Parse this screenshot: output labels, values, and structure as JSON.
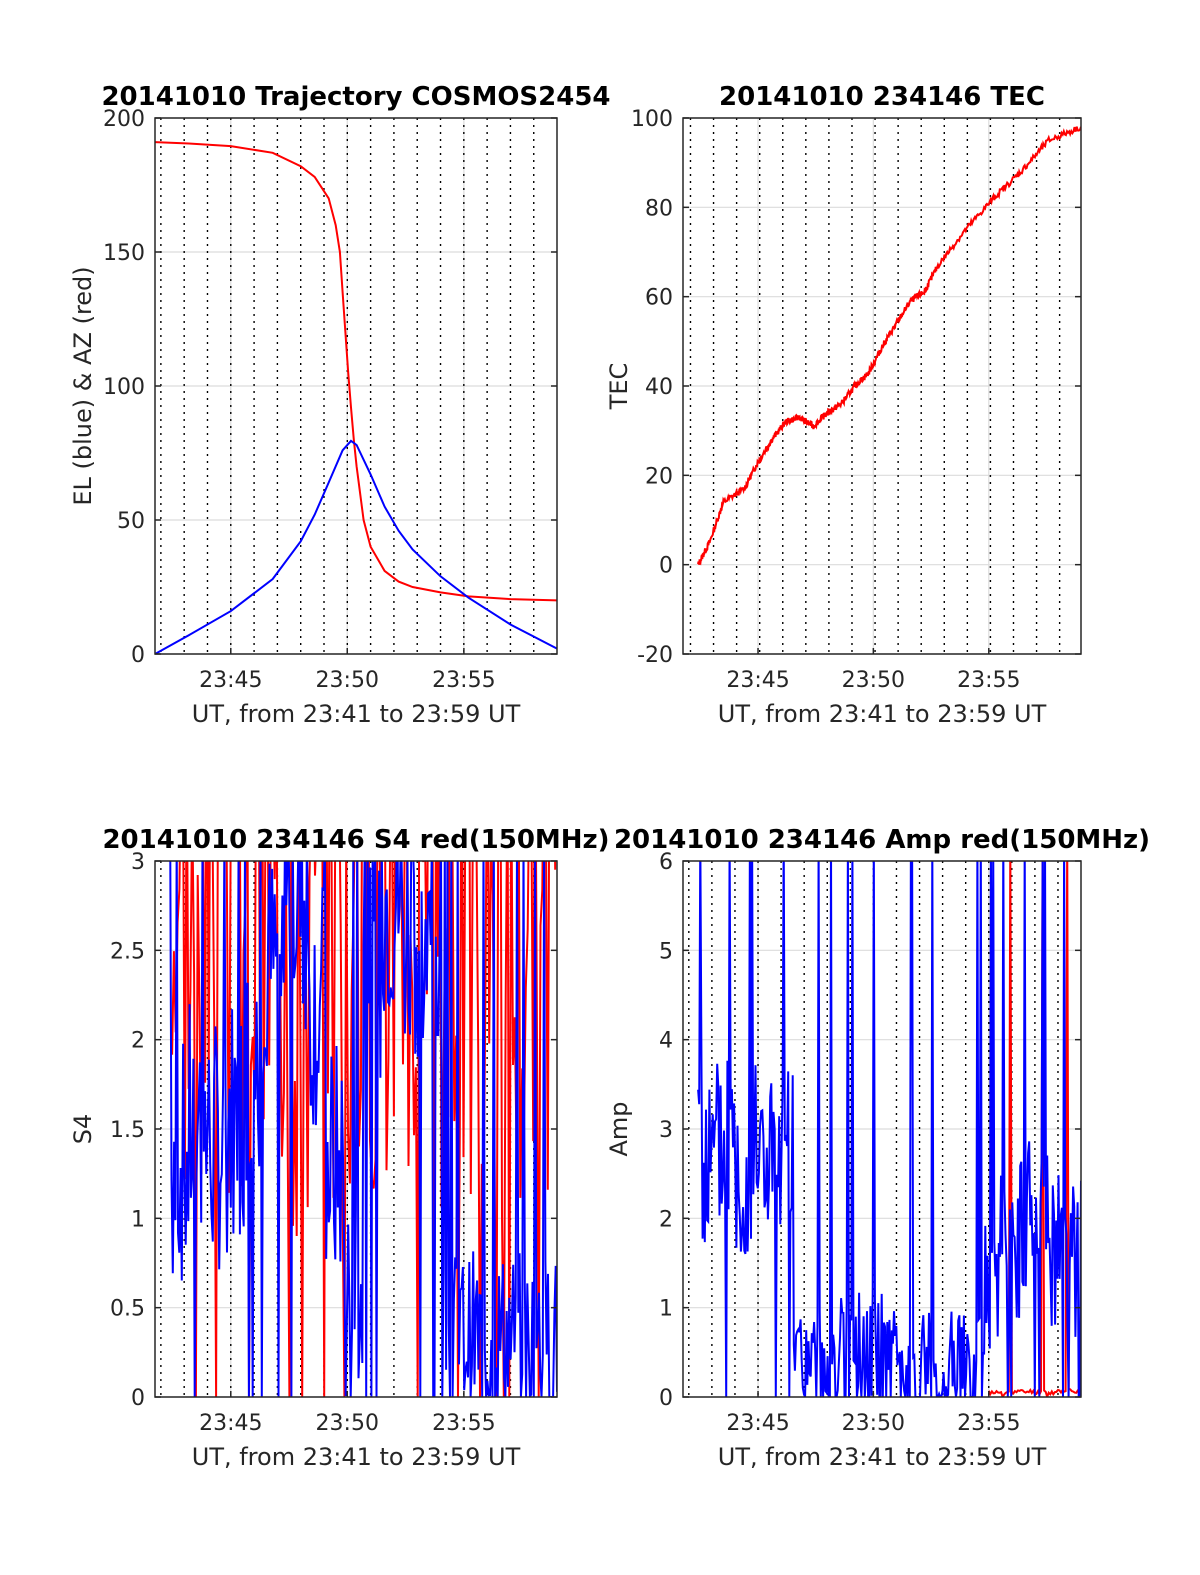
{
  "figure": {
    "background": "#ffffff",
    "grid_color": "#dcdcdc",
    "axis_color": "#262626",
    "marker_line_color": "#000000"
  },
  "chart_data": [
    {
      "type": "line",
      "title": "20141010 Trajectory COSMOS2454",
      "xlabel": "UT, from 23:41 to 23:59 UT",
      "ylabel": "EL (blue) & AZ (red)",
      "xlim": [
        23.6958,
        23.9833
      ],
      "ylim": [
        0,
        200
      ],
      "yticks": [
        0,
        50,
        100,
        150,
        200
      ],
      "xticks": [
        {
          "value": 23.75,
          "label": "23:45"
        },
        {
          "value": 23.8333,
          "label": "23:50"
        },
        {
          "value": 23.9167,
          "label": "23:55"
        }
      ],
      "grid": true,
      "minute_markers": true,
      "series": [
        {
          "color": "#ff0000",
          "kind": "smooth",
          "x": [
            23.6958,
            23.72,
            23.75,
            23.78,
            23.8,
            23.81,
            23.82,
            23.825,
            23.828,
            23.83,
            23.832,
            23.834,
            23.836,
            23.838,
            23.84,
            23.845,
            23.85,
            23.86,
            23.87,
            23.88,
            23.9,
            23.92,
            23.95,
            23.9833
          ],
          "y": [
            191,
            190.5,
            189.5,
            187,
            182,
            178,
            170,
            160,
            150,
            135,
            120,
            105,
            92,
            80,
            70,
            50,
            40,
            31,
            27,
            25,
            23,
            21.5,
            20.5,
            20
          ]
        },
        {
          "color": "#0000ff",
          "kind": "smooth",
          "x": [
            23.6958,
            23.72,
            23.75,
            23.78,
            23.8,
            23.81,
            23.82,
            23.83,
            23.836,
            23.84,
            23.85,
            23.86,
            23.87,
            23.88,
            23.9,
            23.92,
            23.95,
            23.9833
          ],
          "y": [
            0,
            7,
            16,
            28,
            42,
            52,
            64,
            76,
            79.5,
            78,
            67,
            55,
            46,
            39,
            29,
            21,
            11,
            2
          ]
        }
      ]
    },
    {
      "type": "line",
      "title": "20141010 234146 TEC",
      "xlabel": "UT, from 23:41 to 23:59 UT",
      "ylabel": "TEC",
      "xlim": [
        23.6958,
        23.9833
      ],
      "ylim": [
        -20,
        100
      ],
      "yticks": [
        -20,
        0,
        20,
        40,
        60,
        80,
        100
      ],
      "xticks": [
        {
          "value": 23.75,
          "label": "23:45"
        },
        {
          "value": 23.8333,
          "label": "23:50"
        },
        {
          "value": 23.9167,
          "label": "23:55"
        }
      ],
      "grid": true,
      "minute_markers": true,
      "series": [
        {
          "color": "#ff0000",
          "kind": "noisy",
          "jitter": 0.7,
          "x": [
            23.7067,
            23.715,
            23.725,
            23.74,
            23.75,
            23.76,
            23.77,
            23.78,
            23.79,
            23.8,
            23.81,
            23.82,
            23.83,
            23.84,
            23.85,
            23.86,
            23.87,
            23.88,
            23.9,
            23.92,
            23.94,
            23.96,
            23.9833
          ],
          "y": [
            0,
            5,
            14,
            17,
            23,
            28,
            32,
            33,
            31,
            34,
            36,
            40,
            43,
            49,
            54,
            59,
            61,
            67,
            75,
            82,
            88,
            95,
            98
          ]
        }
      ]
    },
    {
      "type": "line",
      "title": "20141010 234146 S4 red(150MHz)",
      "xlabel": "UT, from 23:41 to 23:59 UT",
      "ylabel": "S4",
      "xlim": [
        23.6958,
        23.9833
      ],
      "ylim": [
        0,
        3
      ],
      "yticks": [
        0,
        0.5,
        1,
        1.5,
        2,
        2.5,
        3
      ],
      "xticks": [
        {
          "value": 23.75,
          "label": "23:45"
        },
        {
          "value": 23.8333,
          "label": "23:50"
        },
        {
          "value": 23.9167,
          "label": "23:55"
        }
      ],
      "grid": true,
      "minute_markers": true,
      "series": [
        {
          "color": "#ff0000",
          "kind": "spiky",
          "x_start": 23.708,
          "x_end": 23.9833,
          "count": 210,
          "base": [
            2.9,
            2.7,
            2.8,
            2.6,
            2.75,
            2.9,
            2.8,
            2.7,
            2.5,
            2.6
          ],
          "amplitude": 2.9,
          "seed": 3
        },
        {
          "color": "#0000ff",
          "kind": "spiky",
          "x_start": 23.7067,
          "x_end": 23.9833,
          "count": 300,
          "base": [
            1.3,
            1.5,
            1.4,
            1.6,
            1.9,
            2.4,
            2.8,
            2.2,
            1.3,
            0.6,
            2.3,
            2.8,
            2.6,
            2.4,
            0.35,
            0.35,
            0.33,
            0.35,
            0.34,
            0.33
          ],
          "amplitude": 1.2,
          "seed": 7
        }
      ]
    },
    {
      "type": "line",
      "title": "20141010 234146 Amp red(150MHz)",
      "xlabel": "UT, from 23:41 to 23:59 UT",
      "ylabel": "Amp",
      "xlim": [
        23.6958,
        23.9833
      ],
      "ylim": [
        0,
        6
      ],
      "yticks": [
        0,
        1,
        2,
        3,
        4,
        5,
        6
      ],
      "xticks": [
        {
          "value": 23.75,
          "label": "23:45"
        },
        {
          "value": 23.8333,
          "label": "23:50"
        },
        {
          "value": 23.9167,
          "label": "23:55"
        }
      ],
      "grid": true,
      "minute_markers": true,
      "series": [
        {
          "color": "#ff0000",
          "kind": "spiky",
          "x_start": 23.9167,
          "x_end": 23.9833,
          "count": 60,
          "base": [
            0.05,
            0.06,
            0.05,
            0.07
          ],
          "amplitude": 0.06,
          "seed": 11
        },
        {
          "color": "#0000ff",
          "kind": "spiky",
          "x_start": 23.7067,
          "x_end": 23.9833,
          "count": 340,
          "base": [
            2.6,
            2.8,
            2.5,
            2.7,
            2.6,
            0.3,
            0.35,
            0.4,
            0.5,
            0.45,
            0.3,
            0.25,
            0.3,
            0.25,
            0.2,
            1.6,
            1.7,
            1.8,
            1.7,
            1.6
          ],
          "amplitude": 1.8,
          "seed": 5
        }
      ]
    }
  ]
}
